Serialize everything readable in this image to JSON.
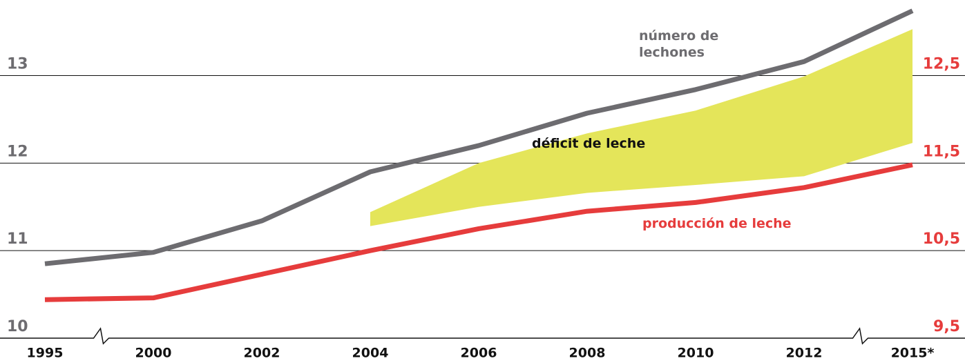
{
  "chart_data": {
    "type": "line",
    "categories": [
      "1995",
      "2000",
      "2002",
      "2004",
      "2006",
      "2008",
      "2010",
      "2012",
      "2015*"
    ],
    "ylim": [
      10,
      13.8
    ],
    "yticks": [
      10,
      11,
      12,
      13
    ],
    "y2lim": [
      9.5,
      13.3
    ],
    "y2ticks": [
      {
        "value": 9.5,
        "label": "9,5"
      },
      {
        "value": 10.5,
        "label": "10,5"
      },
      {
        "value": 11.5,
        "label": "11,5"
      },
      {
        "value": 12.5,
        "label": "12,5"
      }
    ],
    "grid": true,
    "series": [
      {
        "name": "número de lechones",
        "color": "#6d6c70",
        "values": [
          10.85,
          10.98,
          11.34,
          11.9,
          12.2,
          12.57,
          12.84,
          13.16,
          13.74
        ]
      },
      {
        "name": "producción de leche",
        "color": "#e63c3c",
        "axis": "y2",
        "values": [
          9.94,
          9.96,
          10.23,
          10.5,
          10.75,
          10.95,
          11.05,
          11.22,
          11.48
        ]
      },
      {
        "name": "déficit de leche",
        "type": "area",
        "color": "#e4e55a",
        "axis": "y2",
        "upper": [
          null,
          null,
          null,
          10.94,
          11.5,
          11.84,
          12.1,
          12.49,
          13.03
        ],
        "lower": [
          null,
          null,
          null,
          10.78,
          11.0,
          11.16,
          11.25,
          11.35,
          11.73
        ]
      }
    ]
  }
}
